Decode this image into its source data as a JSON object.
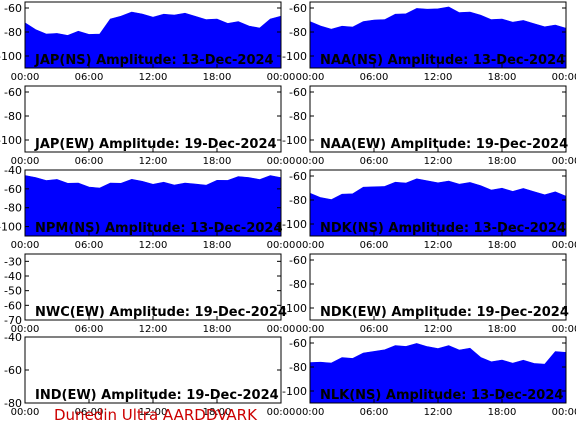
{
  "footer": "Dunedin Ultra AARDDVARK",
  "colors": {
    "fill": "#0000ff",
    "frame": "#000000",
    "text": "#000000",
    "footer": "#cc0000"
  },
  "x_tick_labels": [
    "00:00",
    "06:00",
    "12:00",
    "18:00",
    "00:00"
  ],
  "chart_data": [
    {
      "type": "area",
      "title": "JAP(NS) Amplitude: 13-Dec-2024",
      "ylim": [
        -110,
        -55
      ],
      "yticks": [
        -60,
        -80,
        -100
      ],
      "x": [
        0,
        1,
        2,
        3,
        4,
        5,
        6,
        7,
        8,
        9,
        10,
        11,
        12,
        13,
        14,
        15,
        16,
        17,
        18,
        19,
        20,
        21,
        22,
        23,
        24
      ],
      "y": [
        -74,
        -78,
        -80,
        -82,
        -82,
        -81,
        -82,
        -80,
        -70,
        -66,
        -65,
        -65,
        -66,
        -66,
        -65,
        -66,
        -67,
        -68,
        -70,
        -72,
        -73,
        -75,
        -75,
        -70,
        -66
      ]
    },
    {
      "type": "area",
      "title": "NAA(NS) Amplitude: 13-Dec-2024",
      "ylim": [
        -110,
        -55
      ],
      "yticks": [
        -60,
        -80,
        -100
      ],
      "x": [
        0,
        1,
        2,
        3,
        4,
        5,
        6,
        7,
        8,
        9,
        10,
        11,
        12,
        13,
        14,
        15,
        16,
        17,
        18,
        19,
        20,
        21,
        22,
        23,
        24
      ],
      "y": [
        -73,
        -75,
        -76,
        -76,
        -75,
        -73,
        -70,
        -68,
        -66,
        -64,
        -62,
        -61,
        -59,
        -60,
        -63,
        -65,
        -66,
        -68,
        -70,
        -71,
        -72,
        -73,
        -74,
        -75,
        -76
      ]
    },
    {
      "type": "area",
      "title": "JAP(EW) Amplitude: 19-Dec-2024",
      "ylim": [
        -110,
        -55
      ],
      "yticks": [
        -60,
        -80,
        -100
      ],
      "x": [],
      "y": []
    },
    {
      "type": "area",
      "title": "NAA(EW) Amplitude: 19-Dec-2024",
      "ylim": [
        -110,
        -55
      ],
      "yticks": [
        -60,
        -80,
        -100
      ],
      "x": [],
      "y": []
    },
    {
      "type": "area",
      "title": "NPM(NS) Amplitude: 13-Dec-2024",
      "ylim": [
        -110,
        -40
      ],
      "yticks": [
        -40,
        -60,
        -80,
        -100
      ],
      "x": [
        0,
        1,
        2,
        3,
        4,
        5,
        6,
        7,
        8,
        9,
        10,
        11,
        12,
        13,
        14,
        15,
        16,
        17,
        18,
        19,
        20,
        21,
        22,
        23,
        24
      ],
      "y": [
        -48,
        -48,
        -49,
        -51,
        -53,
        -56,
        -58,
        -57,
        -55,
        -53,
        -52,
        -52,
        -53,
        -54,
        -55,
        -56,
        -55,
        -54,
        -52,
        -50,
        -49,
        -48,
        -48,
        -47,
        -47
      ]
    },
    {
      "type": "area",
      "title": "NDK(NS) Amplitude: 13-Dec-2024",
      "ylim": [
        -110,
        -55
      ],
      "yticks": [
        -60,
        -80,
        -100
      ],
      "x": [
        0,
        1,
        2,
        3,
        4,
        5,
        6,
        7,
        8,
        9,
        10,
        11,
        12,
        13,
        14,
        15,
        16,
        17,
        18,
        19,
        20,
        21,
        22,
        23,
        24
      ],
      "y": [
        -76,
        -78,
        -78,
        -76,
        -74,
        -71,
        -69,
        -67,
        -66,
        -65,
        -64,
        -64,
        -64,
        -65,
        -66,
        -67,
        -68,
        -70,
        -71,
        -72,
        -72,
        -73,
        -74,
        -74,
        -76
      ]
    },
    {
      "type": "area",
      "title": "NWC(EW) Amplitude: 19-Dec-2024",
      "ylim": [
        -70,
        -25
      ],
      "yticks": [
        -30,
        -40,
        -50,
        -60,
        -70
      ],
      "x": [],
      "y": []
    },
    {
      "type": "area",
      "title": "NDK(EW) Amplitude: 19-Dec-2024",
      "ylim": [
        -110,
        -55
      ],
      "yticks": [
        -60,
        -80,
        -100
      ],
      "x": [],
      "y": []
    },
    {
      "type": "area",
      "title": "IND(EW) Amplitude: 19-Dec-2024",
      "ylim": [
        -80,
        -40
      ],
      "yticks": [
        -40,
        -60,
        -80
      ],
      "x": [],
      "y": []
    },
    {
      "type": "area",
      "title": "NLK(NS) Amplitude: 13-Dec-2024",
      "ylim": [
        -110,
        -55
      ],
      "yticks": [
        -60,
        -80,
        -100
      ],
      "x": [
        0,
        1,
        2,
        3,
        4,
        5,
        6,
        7,
        8,
        9,
        10,
        11,
        12,
        13,
        14,
        15,
        16,
        17,
        18,
        19,
        20,
        21,
        22,
        23,
        24
      ],
      "y": [
        -78,
        -76,
        -75,
        -73,
        -72,
        -70,
        -67,
        -64,
        -63,
        -62,
        -62,
        -63,
        -63,
        -63,
        -65,
        -66,
        -72,
        -74,
        -75,
        -76,
        -76,
        -77,
        -76,
        -68,
        -67
      ]
    }
  ]
}
